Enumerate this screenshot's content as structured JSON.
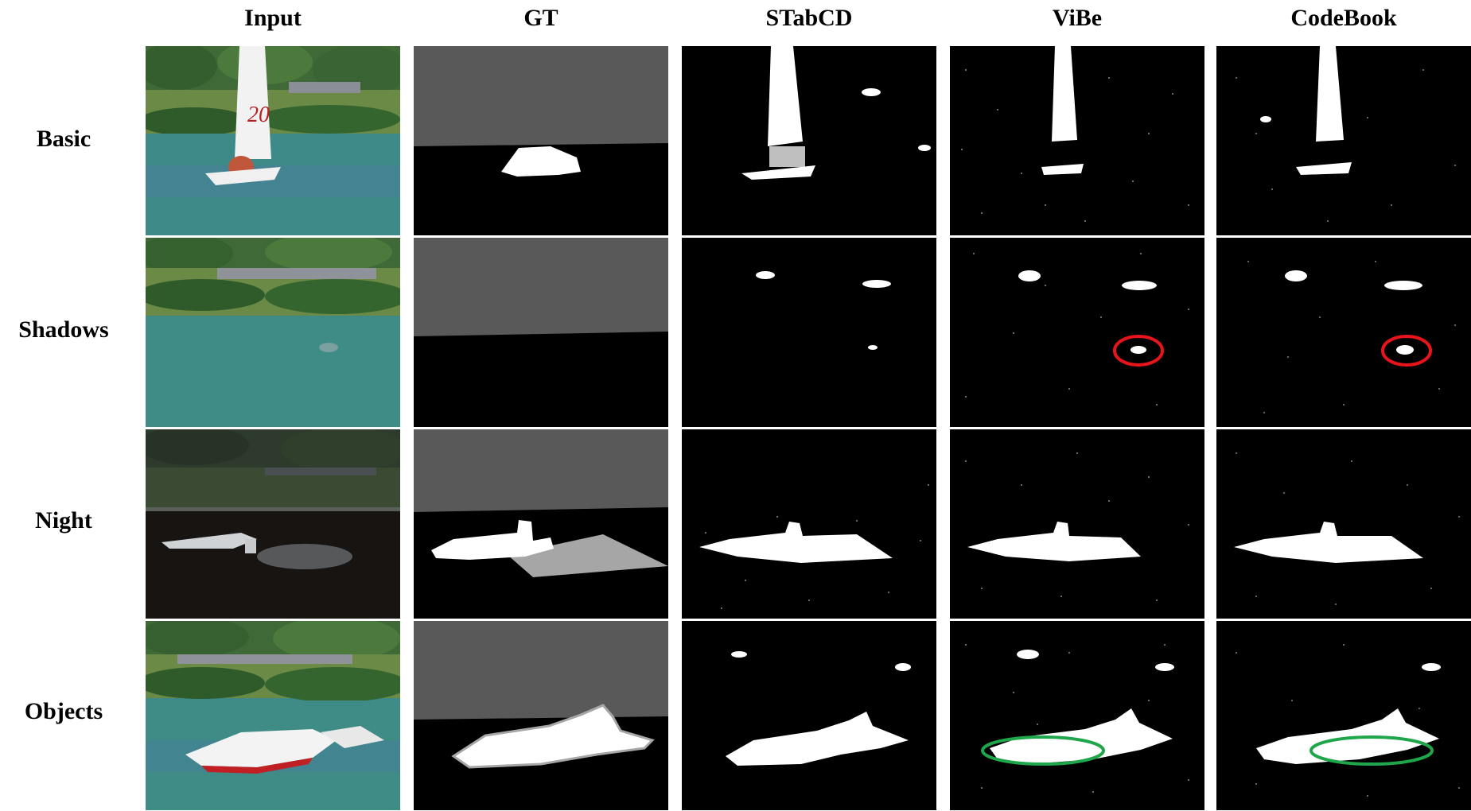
{
  "columns": [
    "Input",
    "GT",
    "STabCD",
    "ViBe",
    "CodeBook"
  ],
  "rows": [
    "Basic",
    "Shadows",
    "Night",
    "Objects"
  ],
  "annotations": [
    {
      "row": "Shadows",
      "column": "ViBe",
      "shape": "ellipse",
      "color": "#e8141b"
    },
    {
      "row": "Shadows",
      "column": "CodeBook",
      "shape": "ellipse",
      "color": "#e8141b"
    },
    {
      "row": "Objects",
      "column": "ViBe",
      "shape": "ellipse",
      "color": "#1fa64a"
    },
    {
      "row": "Objects",
      "column": "CodeBook",
      "shape": "ellipse",
      "color": "#1fa64a"
    }
  ],
  "colors": {
    "gt_background": "#595959",
    "gt_object": "#ffffff",
    "gt_shadow": "#a6a6a6",
    "mask_background": "#000000"
  }
}
